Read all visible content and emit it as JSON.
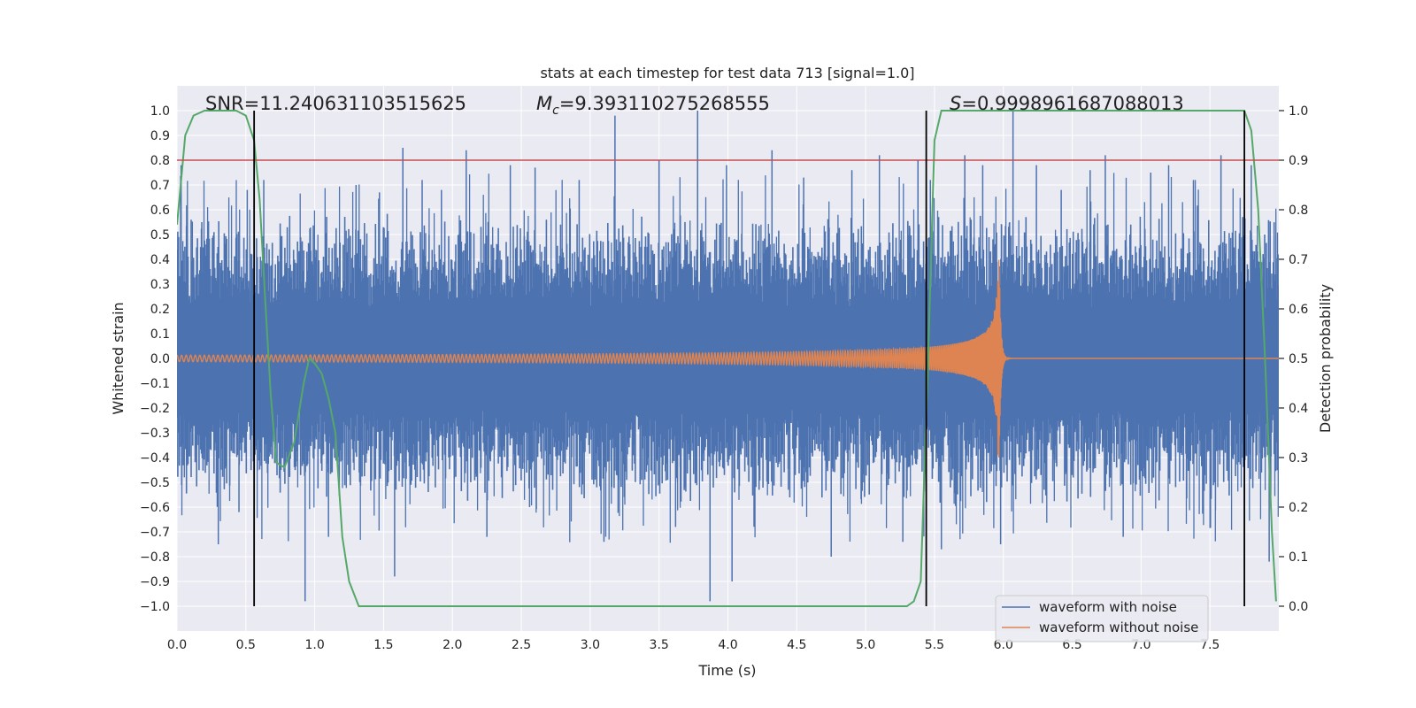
{
  "chart_data": {
    "type": "line",
    "title": "stats at each timestep for test data 713 [signal=1.0]",
    "xlabel": "Time (s)",
    "ylabel": "Whitened strain",
    "y2label": "Detection probability",
    "xlim": [
      0.0,
      8.0
    ],
    "ylim": [
      -1.1,
      1.1
    ],
    "y2lim": [
      -0.05,
      1.05
    ],
    "x_ticks": [
      0.0,
      0.5,
      1.0,
      1.5,
      2.0,
      2.5,
      3.0,
      3.5,
      4.0,
      4.5,
      5.0,
      5.5,
      6.0,
      6.5,
      7.0,
      7.5
    ],
    "x_tick_labels": [
      "0.0",
      "0.5",
      "1.0",
      "1.5",
      "2.0",
      "2.5",
      "3.0",
      "3.5",
      "4.0",
      "4.5",
      "5.0",
      "5.5",
      "6.0",
      "6.5",
      "7.0",
      "7.5"
    ],
    "y_ticks": [
      1.0,
      0.9,
      0.8,
      0.7,
      0.6,
      0.5,
      0.4,
      0.3,
      0.2,
      0.1,
      0.0,
      -0.1,
      -0.2,
      -0.3,
      -0.4,
      -0.5,
      -0.6,
      -0.7,
      -0.8,
      -0.9,
      -1.0
    ],
    "y_tick_labels": [
      "1.0",
      "0.9",
      "0.8",
      "0.7",
      "0.6",
      "0.5",
      "0.4",
      "0.3",
      "0.2",
      "0.1",
      "0.0",
      "−0.1",
      "−0.2",
      "−0.3",
      "−0.4",
      "−0.5",
      "−0.6",
      "−0.7",
      "−0.8",
      "−0.9",
      "−1.0"
    ],
    "y2_ticks": [
      1.0,
      0.9,
      0.8,
      0.7,
      0.6,
      0.5,
      0.4,
      0.3,
      0.2,
      0.1,
      0.0
    ],
    "y2_tick_labels": [
      "1.0",
      "0.9",
      "0.8",
      "0.7",
      "0.6",
      "0.5",
      "0.4",
      "0.3",
      "0.2",
      "0.1",
      "0.0"
    ],
    "annotations": {
      "snr": "SNR=11.240631103515625",
      "mc_symbol": "M",
      "mc_sub": "c",
      "mc_value": "=9.393110275268555",
      "s_symbol": "S",
      "s_value": "=0.9998961687088013"
    },
    "threshold": {
      "axis": "y2",
      "value": 0.9,
      "color": "#c44e52"
    },
    "vertical_lines": [
      0.56,
      5.44,
      7.75
    ],
    "series": [
      {
        "name": "waveform with noise",
        "color": "#4c72b0",
        "axis": "y",
        "kind": "noise",
        "x_range": [
          0.0,
          8.0
        ],
        "band": 0.45,
        "spikes": [
          [
            0.03,
            0.78
          ],
          [
            0.18,
            0.55
          ],
          [
            0.3,
            -0.75
          ],
          [
            0.45,
            -0.62
          ],
          [
            0.51,
            0.68
          ],
          [
            0.63,
            0.72
          ],
          [
            0.93,
            -0.98
          ],
          [
            1.1,
            -0.72
          ],
          [
            1.3,
            0.7
          ],
          [
            1.47,
            0.67
          ],
          [
            1.58,
            -0.88
          ],
          [
            1.64,
            0.85
          ],
          [
            1.78,
            0.72
          ],
          [
            1.92,
            0.68
          ],
          [
            2.1,
            0.84
          ],
          [
            2.25,
            -0.72
          ],
          [
            2.42,
            0.78
          ],
          [
            2.56,
            -0.6
          ],
          [
            2.6,
            0.77
          ],
          [
            2.92,
            0.72
          ],
          [
            3.1,
            -0.74
          ],
          [
            3.18,
            0.98
          ],
          [
            3.5,
            0.8
          ],
          [
            3.62,
            -0.68
          ],
          [
            3.78,
            1.0
          ],
          [
            3.87,
            -0.98
          ],
          [
            3.99,
            0.78
          ],
          [
            4.03,
            -0.9
          ],
          [
            4.32,
            0.84
          ],
          [
            4.55,
            0.73
          ],
          [
            4.75,
            -0.8
          ],
          [
            4.9,
            0.76
          ],
          [
            5.1,
            0.82
          ],
          [
            5.27,
            -0.74
          ],
          [
            5.38,
            0.8
          ],
          [
            5.47,
            0.72
          ],
          [
            5.55,
            -0.77
          ],
          [
            5.72,
            0.82
          ],
          [
            5.85,
            0.78
          ],
          [
            5.98,
            -0.75
          ],
          [
            6.07,
            1.0
          ],
          [
            6.24,
            0.78
          ],
          [
            6.42,
            0.68
          ],
          [
            6.63,
            0.76
          ],
          [
            6.74,
            0.82
          ],
          [
            6.87,
            -0.72
          ],
          [
            7.07,
            0.75
          ],
          [
            7.2,
            0.78
          ],
          [
            7.38,
            0.72
          ],
          [
            7.58,
            0.82
          ],
          [
            7.75,
            -0.85
          ],
          [
            7.8,
            0.78
          ],
          [
            7.93,
            -0.82
          ]
        ]
      },
      {
        "name": "waveform without noise",
        "color": "#dd8452",
        "axis": "y",
        "kind": "chirp",
        "t_start": 0.0,
        "t_coalescence": 5.97,
        "t_end": 8.0,
        "start_freq_hz": 30,
        "start_amplitude": 0.013,
        "peak_amplitude": 0.4
      },
      {
        "name": "detection probability",
        "color": "#55a868",
        "axis": "y2",
        "kind": "line",
        "x": [
          0.0,
          0.03,
          0.06,
          0.12,
          0.2,
          0.3,
          0.38,
          0.43,
          0.5,
          0.56,
          0.6,
          0.64,
          0.68,
          0.72,
          0.78,
          0.85,
          0.92,
          0.96,
          1.0,
          1.05,
          1.1,
          1.15,
          1.2,
          1.25,
          1.32,
          1.5,
          2.0,
          3.0,
          4.0,
          5.0,
          5.2,
          5.3,
          5.35,
          5.4,
          5.45,
          5.5,
          5.55,
          5.6,
          5.8,
          6.0,
          6.5,
          7.0,
          7.3,
          7.5,
          7.65,
          7.75,
          7.8,
          7.85,
          7.9,
          7.95,
          7.98
        ],
        "y": [
          0.77,
          0.86,
          0.95,
          0.99,
          1.0,
          1.0,
          1.0,
          1.0,
          0.99,
          0.94,
          0.82,
          0.62,
          0.43,
          0.29,
          0.28,
          0.33,
          0.45,
          0.5,
          0.49,
          0.47,
          0.42,
          0.35,
          0.14,
          0.05,
          0.0,
          0.0,
          0.0,
          0.0,
          0.0,
          0.0,
          0.0,
          0.0,
          0.01,
          0.05,
          0.47,
          0.94,
          1.0,
          1.0,
          1.0,
          1.0,
          1.0,
          1.0,
          1.0,
          1.0,
          1.0,
          1.0,
          0.96,
          0.8,
          0.5,
          0.15,
          0.01
        ]
      }
    ],
    "legend": {
      "placement": "lower-right",
      "entries": [
        {
          "label": "waveform with noise",
          "color": "#4c72b0"
        },
        {
          "label": "waveform without noise",
          "color": "#dd8452"
        }
      ]
    }
  }
}
